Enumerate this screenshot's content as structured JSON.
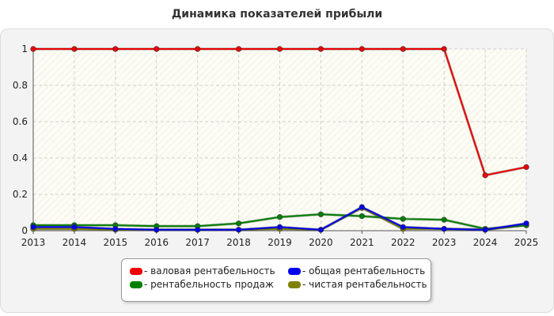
{
  "chart_data": {
    "type": "line",
    "title": "Динамика показателей прибыли",
    "x": [
      "2013",
      "2014",
      "2015",
      "2016",
      "2017",
      "2018",
      "2019",
      "2020",
      "2021",
      "2022",
      "2023",
      "2024",
      "2025"
    ],
    "y_ticks": [
      "0",
      "0.2",
      "0.4",
      "0.6",
      "0.8",
      "1"
    ],
    "ylim": [
      0,
      1
    ],
    "grid": true,
    "legend_position": "bottom",
    "series": [
      {
        "name": "- валовая рентабельность",
        "color": "#ee0000",
        "values": [
          1,
          1,
          1,
          1,
          1,
          1,
          1,
          1,
          1,
          1,
          1,
          0.305,
          0.35
        ]
      },
      {
        "name": "- общая рентабельность",
        "color": "#0000ee",
        "values": [
          0.02,
          0.02,
          0.01,
          0.005,
          0.005,
          0.005,
          0.02,
          0.005,
          0.13,
          0.02,
          0.01,
          0.005,
          0.04
        ]
      },
      {
        "name": "- рентабельность продаж",
        "color": "#008000",
        "values": [
          0.03,
          0.03,
          0.03,
          0.025,
          0.025,
          0.04,
          0.075,
          0.09,
          0.08,
          0.065,
          0.06,
          0.01,
          0.03
        ]
      },
      {
        "name": "- чистая рентабельность",
        "color": "#808000",
        "values": [
          0.01,
          0.01,
          0.005,
          0.005,
          0.005,
          0.005,
          0.01,
          0.005,
          0.125,
          0.01,
          0.01,
          0.005,
          0.03
        ]
      }
    ]
  }
}
